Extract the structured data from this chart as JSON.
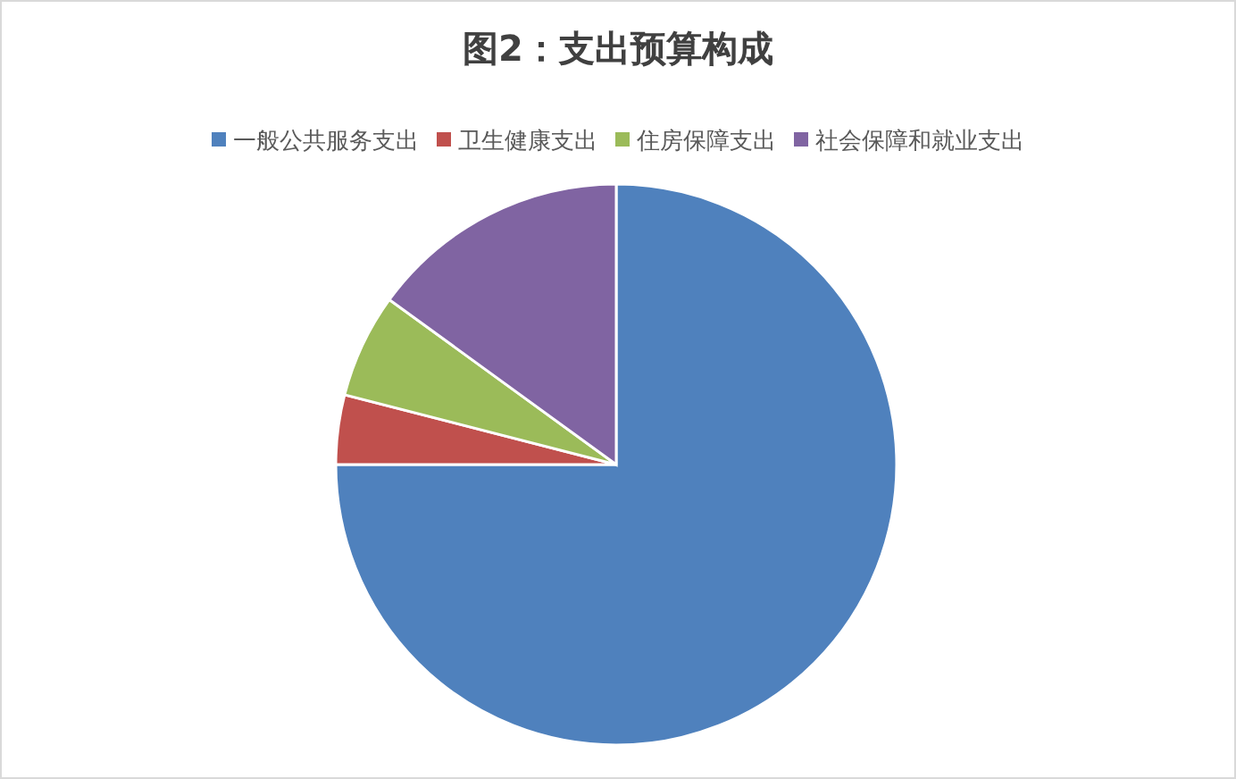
{
  "chart_data": {
    "type": "pie",
    "title": "图2：支出预算构成",
    "categories": [
      "一般公共服务支出",
      "卫生健康支出",
      "住房保障支出",
      "社会保障和就业支出"
    ],
    "values": [
      75,
      4,
      6,
      15
    ],
    "colors": [
      "#4f81bd",
      "#c0504d",
      "#9bbb59",
      "#8064a2"
    ],
    "legend": "top"
  }
}
